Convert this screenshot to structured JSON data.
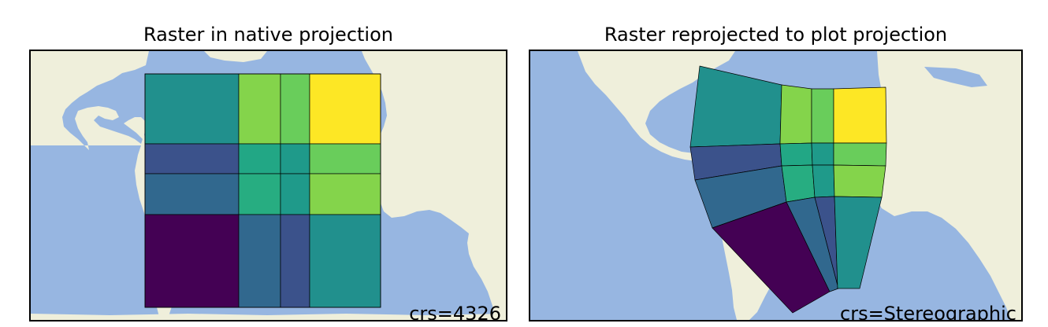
{
  "panels": [
    {
      "title": "Raster in native projection",
      "crs_label": "crs=4326"
    },
    {
      "title": "Raster reprojected to plot projection",
      "crs_label": "crs=Stereographic"
    }
  ],
  "colors": {
    "ocean": "#97b6e1",
    "land": "#efefdb",
    "outline": "#000000"
  },
  "raster": {
    "colormap": "viridis",
    "rows": [
      [
        "#21908d",
        "#84d44b",
        "#69cd5b",
        "#fde725"
      ],
      [
        "#3b528b",
        "#22a785",
        "#1f9a8a",
        "#69cd5b"
      ],
      [
        "#31688e",
        "#27ad81",
        "#1f9a8a",
        "#84d44b"
      ],
      [
        "#440154",
        "#31688e",
        "#3b528b",
        "#21908d"
      ]
    ]
  }
}
